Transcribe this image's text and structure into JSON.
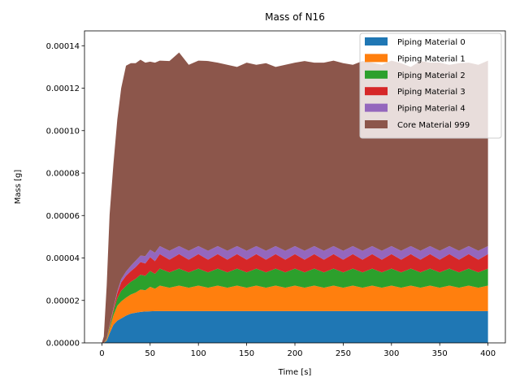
{
  "chart_data": {
    "type": "area",
    "stacked": true,
    "title": "Mass of N16",
    "xlabel": "Time [s]",
    "ylabel": "Mass [g]",
    "xlim": [
      -18,
      418
    ],
    "ylim": [
      0,
      0.000147
    ],
    "xticks": [
      0,
      50,
      100,
      150,
      200,
      250,
      300,
      350,
      400
    ],
    "xtick_labels": [
      "0",
      "50",
      "100",
      "150",
      "200",
      "250",
      "300",
      "350",
      "400"
    ],
    "yticks": [
      0,
      2e-05,
      4e-05,
      6e-05,
      8e-05,
      0.0001,
      0.00012,
      0.00014
    ],
    "ytick_labels": [
      "0.00000",
      "0.00002",
      "0.00004",
      "0.00006",
      "0.00008",
      "0.00010",
      "0.00012",
      "0.00014"
    ],
    "legend_position": "top-right",
    "x": [
      0,
      2,
      5,
      8,
      12,
      16,
      20,
      25,
      30,
      35,
      40,
      45,
      50,
      55,
      60,
      70,
      80,
      90,
      100,
      110,
      120,
      130,
      140,
      150,
      160,
      170,
      180,
      190,
      200,
      210,
      220,
      230,
      240,
      250,
      260,
      270,
      280,
      290,
      300,
      310,
      320,
      330,
      340,
      350,
      360,
      370,
      380,
      390,
      400
    ],
    "series": [
      {
        "name": "Piping Material 0",
        "color": "#1f77b4",
        "values": [
          0,
          0,
          1e-06,
          4.5e-06,
          8.5e-06,
          1.05e-05,
          1.15e-05,
          1.28e-05,
          1.38e-05,
          1.42e-05,
          1.46e-05,
          1.48e-05,
          1.49e-05,
          1.5e-05,
          1.5e-05,
          1.5e-05,
          1.5e-05,
          1.5e-05,
          1.5e-05,
          1.5e-05,
          1.5e-05,
          1.5e-05,
          1.5e-05,
          1.5e-05,
          1.5e-05,
          1.5e-05,
          1.5e-05,
          1.5e-05,
          1.5e-05,
          1.5e-05,
          1.5e-05,
          1.5e-05,
          1.5e-05,
          1.5e-05,
          1.5e-05,
          1.5e-05,
          1.5e-05,
          1.5e-05,
          1.5e-05,
          1.5e-05,
          1.5e-05,
          1.5e-05,
          1.5e-05,
          1.5e-05,
          1.5e-05,
          1.5e-05,
          1.5e-05,
          1.5e-05,
          1.5e-05
        ]
      },
      {
        "name": "Piping Material 1",
        "color": "#ff7f0e",
        "values": [
          0,
          0,
          5e-07,
          2e-06,
          4.5e-06,
          7e-06,
          8e-06,
          8.5e-06,
          9e-06,
          9.5e-06,
          1.05e-05,
          1e-05,
          1.15e-05,
          1.05e-05,
          1.2e-05,
          1.1e-05,
          1.2e-05,
          1.1e-05,
          1.2e-05,
          1.1e-05,
          1.2e-05,
          1.1e-05,
          1.2e-05,
          1.1e-05,
          1.2e-05,
          1.1e-05,
          1.2e-05,
          1.1e-05,
          1.2e-05,
          1.1e-05,
          1.2e-05,
          1.1e-05,
          1.2e-05,
          1.1e-05,
          1.2e-05,
          1.1e-05,
          1.2e-05,
          1.1e-05,
          1.2e-05,
          1.1e-05,
          1.2e-05,
          1.1e-05,
          1.2e-05,
          1.1e-05,
          1.2e-05,
          1.1e-05,
          1.2e-05,
          1.1e-05,
          1.2e-05
        ]
      },
      {
        "name": "Piping Material 2",
        "color": "#2ca02c",
        "values": [
          0,
          0,
          3e-07,
          1e-06,
          2e-06,
          3.5e-06,
          5e-06,
          5.5e-06,
          6e-06,
          6.5e-06,
          7e-06,
          6.8e-06,
          7.5e-06,
          7e-06,
          8e-06,
          7.2e-06,
          8e-06,
          7.2e-06,
          8e-06,
          7.2e-06,
          8e-06,
          7.2e-06,
          8e-06,
          7.2e-06,
          8e-06,
          7.2e-06,
          8e-06,
          7.2e-06,
          8e-06,
          7.2e-06,
          8e-06,
          7.2e-06,
          8e-06,
          7.2e-06,
          8e-06,
          7.2e-06,
          8e-06,
          7.2e-06,
          8e-06,
          7.2e-06,
          8e-06,
          7.2e-06,
          8e-06,
          7.2e-06,
          8e-06,
          7.2e-06,
          8e-06,
          7.2e-06,
          8e-06
        ]
      },
      {
        "name": "Piping Material 3",
        "color": "#d62728",
        "values": [
          0,
          0,
          2e-07,
          6e-07,
          1e-06,
          2.5e-06,
          4e-06,
          4.8e-06,
          5e-06,
          5.5e-06,
          6e-06,
          5.8e-06,
          6.5e-06,
          6e-06,
          6.8e-06,
          6e-06,
          6.8e-06,
          6e-06,
          6.8e-06,
          6e-06,
          6.8e-06,
          6e-06,
          6.8e-06,
          6e-06,
          6.8e-06,
          6e-06,
          6.8e-06,
          6e-06,
          6.8e-06,
          6e-06,
          6.8e-06,
          6e-06,
          6.8e-06,
          6e-06,
          6.8e-06,
          6e-06,
          6.8e-06,
          6e-06,
          6.8e-06,
          6e-06,
          6.8e-06,
          6e-06,
          6.8e-06,
          6e-06,
          6.8e-06,
          6e-06,
          6.8e-06,
          6e-06,
          6.8e-06
        ]
      },
      {
        "name": "Piping Material 4",
        "color": "#9467bd",
        "values": [
          0,
          0,
          1e-07,
          3e-07,
          5e-07,
          8e-07,
          1.5e-06,
          2e-06,
          2.5e-06,
          3e-06,
          3e-06,
          3.5e-06,
          3.5e-06,
          4e-06,
          3.8e-06,
          4.2e-06,
          3.8e-06,
          4.2e-06,
          3.8e-06,
          4.2e-06,
          3.8e-06,
          4.2e-06,
          3.8e-06,
          4.2e-06,
          3.8e-06,
          4.2e-06,
          3.8e-06,
          4.2e-06,
          3.8e-06,
          4.2e-06,
          3.8e-06,
          4.2e-06,
          3.8e-06,
          4.2e-06,
          3.8e-06,
          4.2e-06,
          3.8e-06,
          4.2e-06,
          3.8e-06,
          4.2e-06,
          3.8e-06,
          4.2e-06,
          3.8e-06,
          4.2e-06,
          3.8e-06,
          4.2e-06,
          3.8e-06,
          4.2e-06,
          3.8e-06
        ]
      },
      {
        "name": "Core Material 999",
        "color": "#8c564b",
        "values": [
          0,
          3e-06,
          2.5e-05,
          5.2e-05,
          6.8e-05,
          8.1e-05,
          9e-05,
          9.7e-05,
          9.55e-05,
          9.31e-05,
          9.23e-05,
          9.11e-05,
          8.86e-05,
          8.95e-05,
          8.74e-05,
          8.94e-05,
          9.12e-05,
          8.76e-05,
          8.74e-05,
          8.94e-05,
          8.64e-05,
          8.76e-05,
          8.44e-05,
          8.86e-05,
          8.54e-05,
          8.84e-05,
          8.44e-05,
          8.76e-05,
          8.64e-05,
          8.94e-05,
          8.64e-05,
          8.86e-05,
          8.74e-05,
          8.84e-05,
          8.54e-05,
          8.94e-05,
          8.64e-05,
          8.76e-05,
          8.74e-05,
          8.84e-05,
          8.44e-05,
          8.94e-05,
          8.64e-05,
          8.86e-05,
          8.54e-05,
          8.84e-05,
          8.64e-05,
          8.76e-05,
          8.74e-05
        ]
      }
    ]
  }
}
